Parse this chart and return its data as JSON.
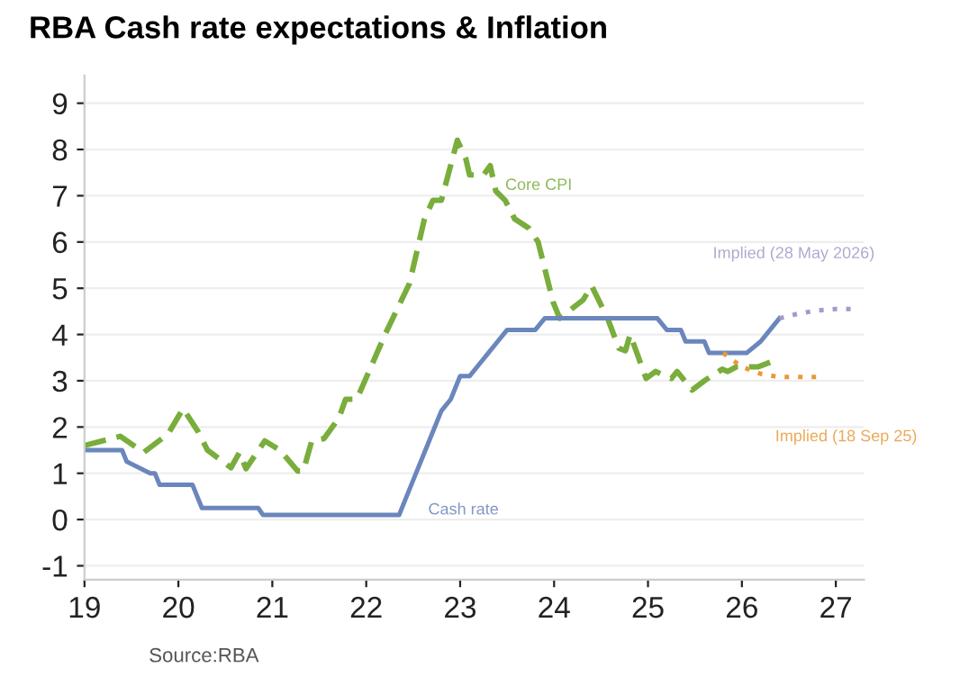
{
  "chart_data": {
    "type": "line",
    "title": "RBA Cash rate expectations & Inflation",
    "xlim": [
      19,
      27.3
    ],
    "xticks": [
      19,
      20,
      21,
      22,
      23,
      24,
      25,
      26,
      27
    ],
    "ylim": [
      -1.3,
      9.6
    ],
    "yticks": [
      -1,
      0,
      1,
      2,
      3,
      4,
      5,
      6,
      7,
      8,
      9
    ],
    "grid": "y",
    "marker": "none",
    "series": [
      {
        "name": "Core CPI",
        "color": "#79ad3c",
        "line_style": "dashed",
        "x": [
          19.0,
          19.38,
          19.63,
          19.89,
          20.05,
          20.21,
          20.31,
          20.56,
          20.65,
          20.72,
          20.92,
          21.08,
          21.27,
          21.33,
          21.42,
          21.55,
          21.71,
          21.78,
          21.9,
          22.2,
          22.46,
          22.62,
          22.71,
          22.8,
          22.97,
          23.06,
          23.1,
          23.25,
          23.32,
          23.38,
          23.48,
          23.58,
          23.73,
          23.83,
          23.99,
          24.06,
          24.31,
          24.4,
          24.57,
          24.69,
          24.76,
          24.81,
          24.98,
          25.08,
          25.25,
          25.31,
          25.47,
          25.6,
          25.79,
          25.85,
          25.94,
          26.17,
          26.3
        ],
        "values": [
          1.6,
          1.8,
          1.45,
          1.85,
          2.4,
          1.9,
          1.5,
          1.12,
          1.45,
          1.1,
          1.7,
          1.5,
          1.05,
          1.05,
          1.7,
          1.75,
          2.2,
          2.6,
          2.6,
          4.0,
          5.1,
          6.5,
          6.9,
          6.9,
          8.2,
          7.8,
          7.45,
          7.45,
          7.65,
          7.1,
          6.9,
          6.5,
          6.3,
          6.0,
          4.7,
          4.35,
          4.75,
          5.05,
          4.35,
          3.7,
          3.65,
          4.0,
          3.05,
          3.2,
          3.05,
          3.2,
          2.8,
          3.0,
          3.25,
          3.2,
          3.3,
          3.3,
          3.4
        ]
      },
      {
        "name": "Cash rate",
        "color": "#6b86bd",
        "line_style": "solid",
        "x": [
          19.0,
          19.4,
          19.45,
          19.7,
          19.75,
          19.8,
          20.15,
          20.25,
          20.85,
          20.9,
          22.35,
          22.4,
          22.5,
          22.6,
          22.7,
          22.8,
          22.9,
          23.0,
          23.1,
          23.2,
          23.3,
          23.4,
          23.5,
          23.8,
          23.9,
          25.1,
          25.2,
          25.35,
          25.4,
          25.6,
          25.65,
          26.05,
          26.2,
          26.3,
          26.4
        ],
        "values": [
          1.5,
          1.5,
          1.25,
          1.0,
          1.0,
          0.75,
          0.75,
          0.25,
          0.25,
          0.1,
          0.1,
          0.35,
          0.85,
          1.35,
          1.85,
          2.35,
          2.6,
          3.1,
          3.1,
          3.35,
          3.6,
          3.85,
          4.1,
          4.1,
          4.35,
          4.35,
          4.1,
          4.1,
          3.85,
          3.85,
          3.6,
          3.6,
          3.85,
          4.1,
          4.35
        ]
      },
      {
        "name": "Implied (28 May 2026)",
        "color": "#a39ac8",
        "line_style": "dotted",
        "x": [
          26.4,
          26.6,
          26.8,
          27.0,
          27.2
        ],
        "values": [
          4.35,
          4.45,
          4.52,
          4.55,
          4.55
        ]
      },
      {
        "name": "Implied (18 Sep 25)",
        "color": "#e89a3c",
        "line_style": "dotted",
        "x": [
          25.8,
          26.0,
          26.2,
          26.4,
          26.8
        ],
        "values": [
          3.6,
          3.3,
          3.15,
          3.08,
          3.08
        ]
      }
    ],
    "annotations": [
      "Source:RBA"
    ]
  }
}
